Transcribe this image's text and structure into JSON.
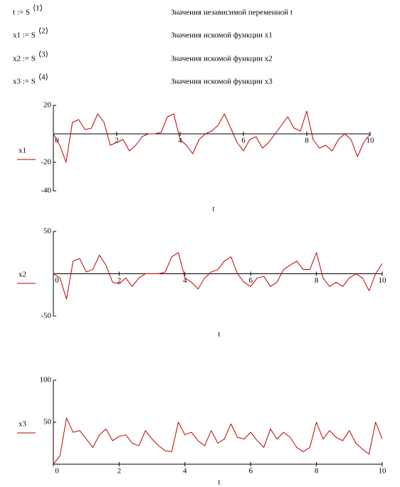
{
  "definitions": [
    {
      "lhs": "t := S",
      "sup": "⟨1⟩",
      "note": "Значения независимой переменной  t"
    },
    {
      "lhs": "x1 := S",
      "sup": "⟨2⟩",
      "note": "Значения  искомой функции  x1"
    },
    {
      "lhs": "x2 := S",
      "sup": "⟨3⟩",
      "note": "Значения  искомой функции  x2"
    },
    {
      "lhs": "x3 := S",
      "sup": "⟨4⟩",
      "note": "Значения искомой  функции  x3"
    }
  ],
  "chart_data": [
    {
      "type": "line",
      "xlabel": "t",
      "xlim": [
        0,
        10
      ],
      "xticks": [
        0,
        2,
        4,
        6,
        8,
        10
      ],
      "ylim": [
        -40,
        20
      ],
      "yticks": [
        -40,
        -20,
        20
      ],
      "x": [
        0,
        0.2,
        0.4,
        0.6,
        0.8,
        1,
        1.2,
        1.4,
        1.6,
        1.8,
        2,
        2.2,
        2.4,
        2.6,
        2.8,
        3,
        3.2,
        3.4,
        3.6,
        3.8,
        4,
        4.2,
        4.4,
        4.6,
        4.8,
        5,
        5.2,
        5.4,
        5.6,
        5.8,
        6,
        6.2,
        6.4,
        6.6,
        6.8,
        7,
        7.2,
        7.4,
        7.6,
        7.8,
        8,
        8.2,
        8.4,
        8.6,
        8.8,
        9,
        9.2,
        9.4,
        9.6,
        9.8,
        10
      ],
      "series": [
        {
          "name": "x1",
          "color": "#c00000",
          "values": [
            0,
            -8,
            -20,
            8,
            10,
            3,
            4,
            14,
            8,
            -8,
            -6,
            -4,
            -12,
            -8,
            -2,
            0,
            0,
            1,
            12,
            14,
            -4,
            -8,
            -14,
            -4,
            0,
            2,
            6,
            14,
            4,
            -6,
            -12,
            -4,
            -2,
            -10,
            -6,
            0,
            6,
            12,
            4,
            2,
            16,
            -4,
            -10,
            -8,
            -12,
            -4,
            0,
            -4,
            -16,
            -6,
            0
          ]
        }
      ]
    },
    {
      "type": "line",
      "xlabel": "t",
      "xlim": [
        0,
        10
      ],
      "xticks": [
        0,
        2,
        4,
        6,
        8,
        10
      ],
      "ylim": [
        -50,
        50
      ],
      "yticks": [
        -50,
        50
      ],
      "x": [
        0,
        0.2,
        0.4,
        0.6,
        0.8,
        1,
        1.2,
        1.4,
        1.6,
        1.8,
        2,
        2.2,
        2.4,
        2.6,
        2.8,
        3,
        3.2,
        3.4,
        3.6,
        3.8,
        4,
        4.2,
        4.4,
        4.6,
        4.8,
        5,
        5.2,
        5.4,
        5.6,
        5.8,
        6,
        6.2,
        6.4,
        6.6,
        6.8,
        7,
        7.2,
        7.4,
        7.6,
        7.8,
        8,
        8.2,
        8.4,
        8.6,
        8.8,
        9,
        9.2,
        9.4,
        9.6,
        9.8,
        10
      ],
      "series": [
        {
          "name": "x2",
          "color": "#c00000",
          "values": [
            0,
            -5,
            -30,
            15,
            18,
            2,
            5,
            22,
            10,
            -10,
            -12,
            -5,
            -15,
            -5,
            0,
            0,
            0,
            2,
            20,
            25,
            -5,
            -10,
            -18,
            -5,
            2,
            5,
            15,
            20,
            0,
            -10,
            -15,
            -5,
            -3,
            -15,
            -10,
            5,
            10,
            15,
            5,
            5,
            25,
            -5,
            -15,
            -10,
            -15,
            -5,
            0,
            -5,
            -20,
            0,
            12
          ]
        }
      ]
    },
    {
      "type": "line",
      "xlabel": "t",
      "xlim": [
        0,
        10
      ],
      "xticks": [
        0,
        2,
        4,
        6,
        8,
        10
      ],
      "ylim": [
        0,
        100
      ],
      "yticks": [
        50,
        100
      ],
      "x": [
        0,
        0.2,
        0.4,
        0.6,
        0.8,
        1,
        1.2,
        1.4,
        1.6,
        1.8,
        2,
        2.2,
        2.4,
        2.6,
        2.8,
        3,
        3.2,
        3.4,
        3.6,
        3.8,
        4,
        4.2,
        4.4,
        4.6,
        4.8,
        5,
        5.2,
        5.4,
        5.6,
        5.8,
        6,
        6.2,
        6.4,
        6.6,
        6.8,
        7,
        7.2,
        7.4,
        7.6,
        7.8,
        8,
        8.2,
        8.4,
        8.6,
        8.8,
        9,
        9.2,
        9.4,
        9.6,
        9.8,
        10
      ],
      "series": [
        {
          "name": "x3",
          "color": "#c00000",
          "values": [
            0,
            10,
            55,
            38,
            40,
            30,
            20,
            35,
            42,
            28,
            33,
            35,
            25,
            22,
            40,
            30,
            22,
            16,
            15,
            50,
            35,
            38,
            28,
            22,
            40,
            25,
            30,
            48,
            32,
            30,
            38,
            28,
            20,
            42,
            30,
            38,
            32,
            20,
            15,
            20,
            50,
            30,
            40,
            32,
            28,
            40,
            25,
            18,
            12,
            50,
            30
          ]
        }
      ]
    }
  ]
}
